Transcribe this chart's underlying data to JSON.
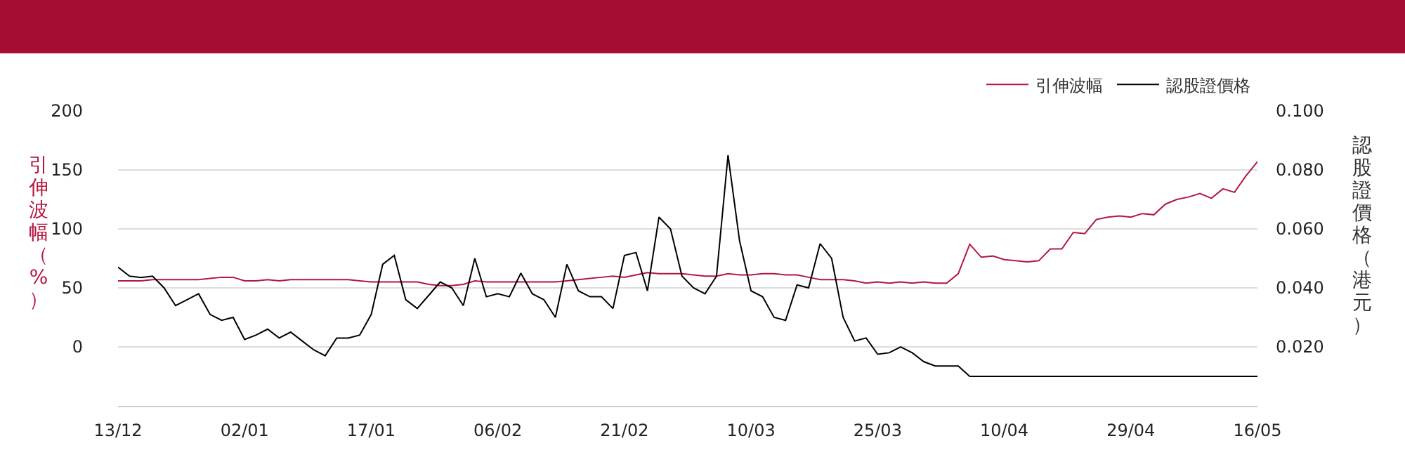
{
  "chart_data": {
    "type": "line",
    "ylabel": "引伸波幅（%）",
    "y2label": "認股證價格（港元）",
    "categories": [
      "13/12",
      null,
      null,
      null,
      null,
      null,
      null,
      null,
      null,
      null,
      null,
      "02/01",
      null,
      null,
      null,
      null,
      null,
      null,
      null,
      null,
      null,
      null,
      "17/01",
      null,
      null,
      null,
      null,
      null,
      null,
      null,
      null,
      null,
      null,
      "06/02",
      null,
      null,
      null,
      null,
      null,
      null,
      null,
      null,
      null,
      null,
      "21/02",
      null,
      null,
      null,
      null,
      null,
      null,
      null,
      null,
      null,
      null,
      "10/03",
      null,
      null,
      null,
      null,
      null,
      null,
      null,
      null,
      null,
      null,
      "25/03",
      null,
      null,
      null,
      null,
      null,
      null,
      null,
      null,
      null,
      null,
      "10/04",
      null,
      null,
      null,
      null,
      null,
      null,
      null,
      null,
      null,
      null,
      "29/04",
      null,
      null,
      null,
      null,
      null,
      null,
      null,
      null,
      null,
      null,
      "16/05"
    ],
    "series": [
      {
        "name": "引伸波幅",
        "color": "#b5173f",
        "type": "line",
        "values": [
          56,
          56,
          56,
          57,
          57,
          57,
          57,
          57,
          58,
          59,
          59,
          56,
          56,
          57,
          56,
          57,
          57,
          57,
          57,
          57,
          57,
          56,
          55,
          55,
          55,
          55,
          55,
          53,
          52,
          52,
          53,
          56,
          55,
          55,
          55,
          55,
          55,
          55,
          55,
          56,
          57,
          58,
          59,
          60,
          59,
          61,
          63,
          62,
          62,
          62,
          61,
          60,
          60,
          62,
          61,
          61,
          62,
          62,
          61,
          61,
          59,
          57,
          57,
          57,
          56,
          54,
          55,
          54,
          55,
          54,
          55,
          54,
          54,
          62,
          87,
          76,
          77,
          74,
          73,
          72,
          73,
          83,
          83,
          97,
          96,
          108,
          110,
          111,
          110,
          113,
          112,
          121,
          125,
          127,
          130,
          126,
          134,
          131,
          145,
          157
        ]
      },
      {
        "name": "認股證價格",
        "color": "#000000",
        "type": "line",
        "axis": "y2",
        "values": [
          0.047,
          0.044,
          0.0435,
          0.044,
          0.04,
          0.034,
          0.036,
          0.038,
          0.031,
          0.029,
          0.03,
          0.0225,
          0.024,
          0.026,
          0.023,
          0.025,
          0.022,
          0.019,
          0.017,
          0.023,
          0.023,
          0.024,
          0.031,
          0.048,
          0.051,
          0.036,
          0.033,
          0.0375,
          0.042,
          0.04,
          0.034,
          0.05,
          0.037,
          0.038,
          0.037,
          0.045,
          0.038,
          0.036,
          0.03,
          0.048,
          0.039,
          0.037,
          0.037,
          0.033,
          0.051,
          0.052,
          0.039,
          0.064,
          0.06,
          0.044,
          0.04,
          0.038,
          0.044,
          0.085,
          0.056,
          0.039,
          0.037,
          0.03,
          0.029,
          0.041,
          0.04,
          0.055,
          0.05,
          0.03,
          0.022,
          0.023,
          0.0175,
          0.018,
          0.02,
          0.018,
          0.015,
          0.0135,
          0.0135,
          0.0135,
          0.01,
          0.01,
          0.01,
          0.01,
          0.01,
          0.01,
          0.01,
          0.01,
          0.01,
          0.01,
          0.01,
          0.01,
          0.01,
          0.01,
          0.01,
          0.01,
          0.01,
          0.01,
          0.01,
          0.01,
          0.01,
          0.01,
          0.01,
          0.01,
          0.01,
          0.01
        ]
      }
    ],
    "ylim": [
      -50,
      200
    ],
    "yticks": [
      0,
      50,
      100,
      150,
      200
    ],
    "y2lim": [
      0,
      0.1
    ],
    "y2ticks": [
      {
        "value": 0.02,
        "label": "0.020"
      },
      {
        "value": 0.04,
        "label": "0.040"
      },
      {
        "value": 0.06,
        "label": "0.060"
      },
      {
        "value": 0.08,
        "label": "0.080"
      },
      {
        "value": 0.1,
        "label": "0.100"
      }
    ],
    "grid": "y",
    "legend": "top right"
  }
}
